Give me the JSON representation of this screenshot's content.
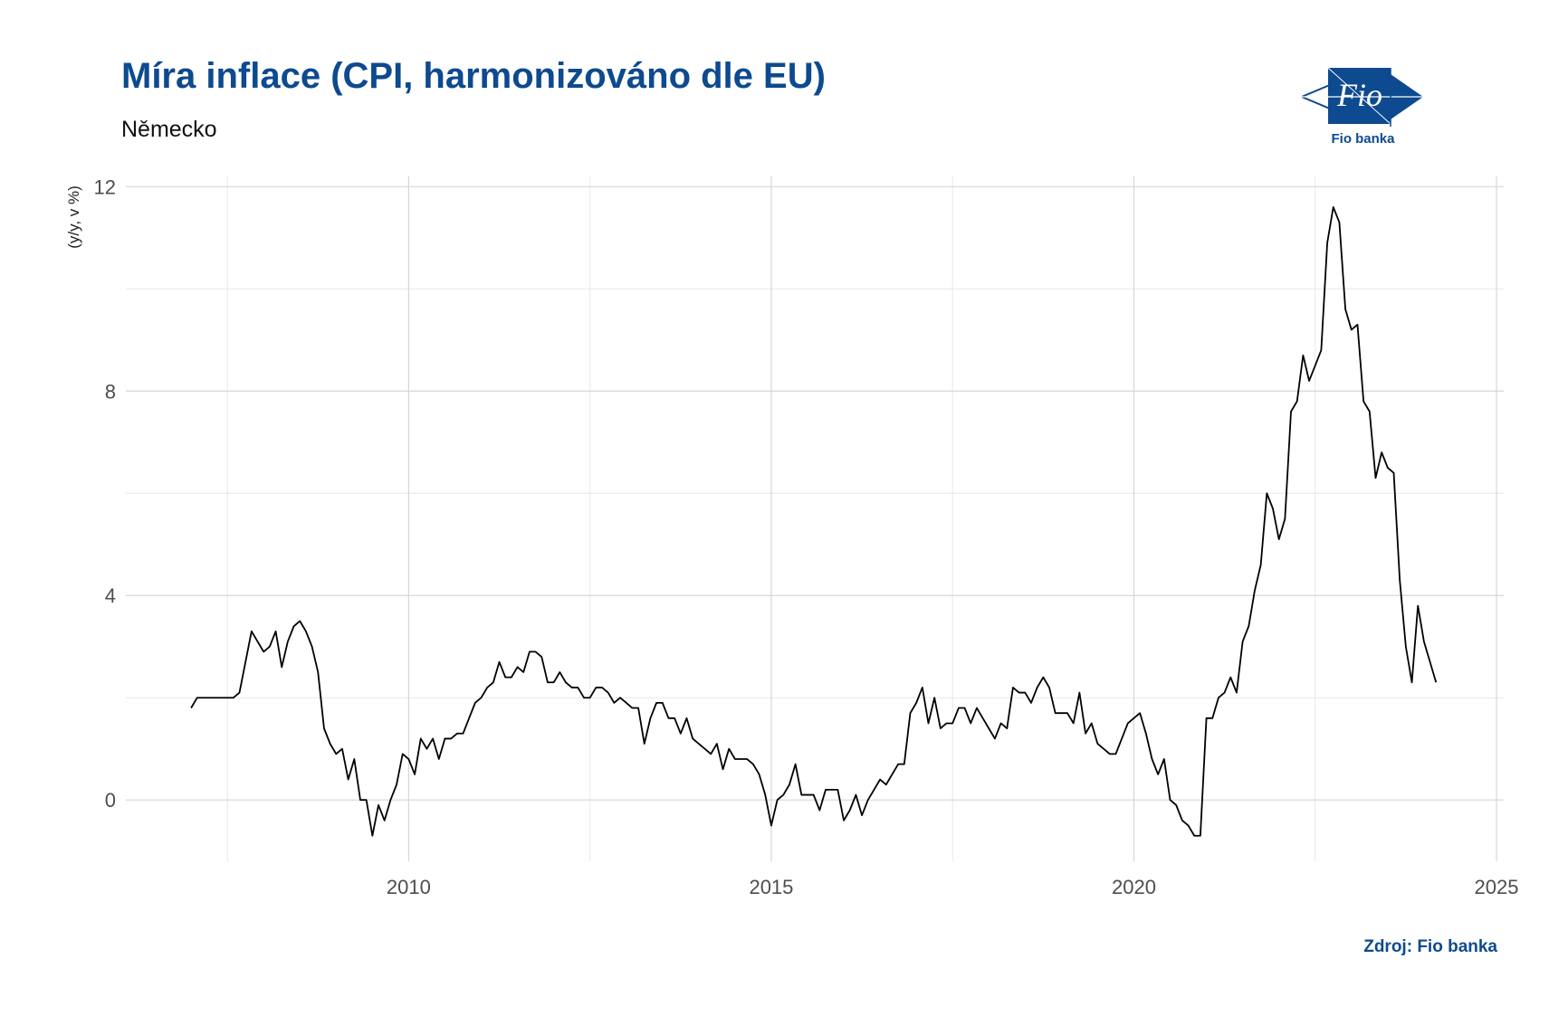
{
  "header": {
    "title": "Míra inflace (CPI, harmonizováno dle EU)",
    "subtitle": "Německo"
  },
  "logo": {
    "text": "Fio",
    "label": "Fio banka",
    "color": "#0d4a8f"
  },
  "footer": {
    "source": "Zdroj: Fio banka"
  },
  "chart_data": {
    "type": "line",
    "title": "Míra inflace (CPI, harmonizováno dle EU)",
    "subtitle": "Německo",
    "xlabel": "",
    "ylabel": "(y/y, v %)",
    "xlim": [
      2006.1,
      2025.1
    ],
    "ylim": [
      -1.2,
      12.2
    ],
    "x_ticks": [
      2010,
      2015,
      2020,
      2025
    ],
    "y_ticks": [
      0,
      4,
      8,
      12
    ],
    "grid": true,
    "line_color": "#000000",
    "series": [
      {
        "start": "2007-01",
        "frequency": "monthly",
        "values": [
          1.8,
          2.0,
          2.0,
          2.0,
          2.0,
          2.0,
          2.0,
          2.0,
          2.1,
          2.7,
          3.3,
          3.1,
          2.9,
          3.0,
          3.3,
          2.6,
          3.1,
          3.4,
          3.5,
          3.3,
          3.0,
          2.5,
          1.4,
          1.1,
          0.9,
          1.0,
          0.4,
          0.8,
          0.0,
          0.0,
          -0.7,
          -0.1,
          -0.4,
          0.0,
          0.3,
          0.9,
          0.8,
          0.5,
          1.2,
          1.0,
          1.2,
          0.8,
          1.2,
          1.2,
          1.3,
          1.3,
          1.6,
          1.9,
          2.0,
          2.2,
          2.3,
          2.7,
          2.4,
          2.4,
          2.6,
          2.5,
          2.9,
          2.9,
          2.8,
          2.3,
          2.3,
          2.5,
          2.3,
          2.2,
          2.2,
          2.0,
          2.0,
          2.2,
          2.2,
          2.1,
          1.9,
          2.0,
          1.9,
          1.8,
          1.8,
          1.1,
          1.6,
          1.9,
          1.9,
          1.6,
          1.6,
          1.3,
          1.6,
          1.2,
          1.1,
          1.0,
          0.9,
          1.1,
          0.6,
          1.0,
          0.8,
          0.8,
          0.8,
          0.7,
          0.5,
          0.1,
          -0.5,
          0.0,
          0.1,
          0.3,
          0.7,
          0.1,
          0.1,
          0.1,
          -0.2,
          0.2,
          0.2,
          0.2,
          -0.4,
          -0.2,
          0.1,
          -0.3,
          0.0,
          0.2,
          0.4,
          0.3,
          0.5,
          0.7,
          0.7,
          1.7,
          1.9,
          2.2,
          1.5,
          2.0,
          1.4,
          1.5,
          1.5,
          1.8,
          1.8,
          1.5,
          1.8,
          1.6,
          1.4,
          1.2,
          1.5,
          1.4,
          2.2,
          2.1,
          2.1,
          1.9,
          2.2,
          2.4,
          2.2,
          1.7,
          1.7,
          1.7,
          1.5,
          2.1,
          1.3,
          1.5,
          1.1,
          1.0,
          0.9,
          0.9,
          1.2,
          1.5,
          1.6,
          1.7,
          1.3,
          0.8,
          0.5,
          0.8,
          0.0,
          -0.1,
          -0.4,
          -0.5,
          -0.7,
          -0.7,
          1.6,
          1.6,
          2.0,
          2.1,
          2.4,
          2.1,
          3.1,
          3.4,
          4.1,
          4.6,
          6.0,
          5.7,
          5.1,
          5.5,
          7.6,
          7.8,
          8.7,
          8.2,
          8.5,
          8.8,
          10.9,
          11.6,
          11.3,
          9.6,
          9.2,
          9.3,
          7.8,
          7.6,
          6.3,
          6.8,
          6.5,
          6.4,
          4.3,
          3.0,
          2.3,
          3.8,
          3.1,
          2.7,
          2.3
        ]
      }
    ]
  }
}
